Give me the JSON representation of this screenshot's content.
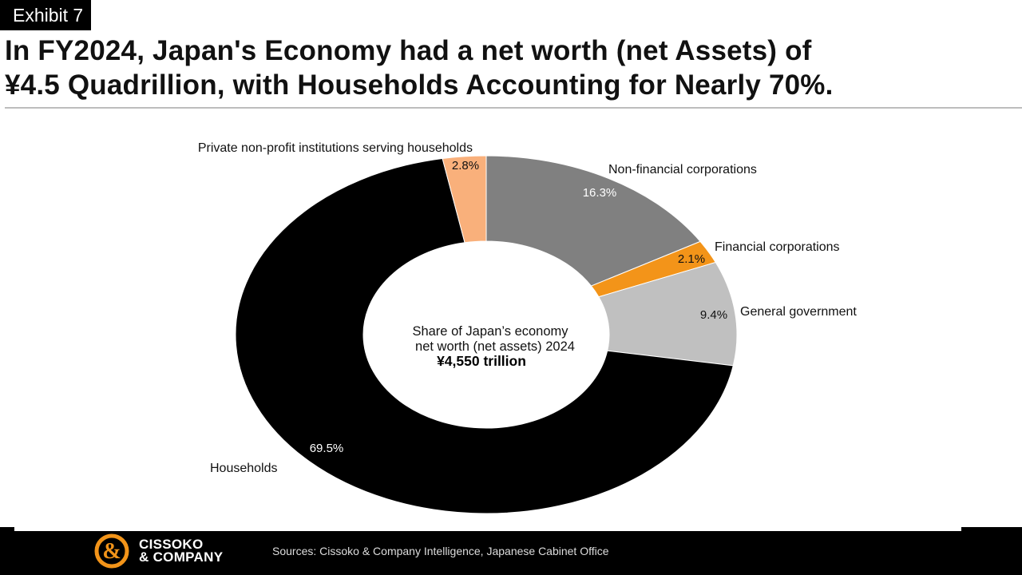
{
  "exhibit_label": "Exhibit 7",
  "title_line1": "In FY2024, Japan's Economy had a net worth (net Assets) of",
  "title_line2": "¥4.5 Quadrillion, with Households Accounting for Nearly 70%.",
  "chart_data": {
    "type": "pie",
    "donut": true,
    "center_label_line1": "Share of Japan’s economy",
    "center_label_line2": "net worth (net assets) 2024",
    "center_value": "¥4,550 trillion",
    "slices": [
      {
        "name": "Non-financial corporations",
        "value": 16.3,
        "label": "16.3%",
        "color": "#808080"
      },
      {
        "name": "Financial corporations",
        "value": 2.1,
        "label": "2.1%",
        "color": "#f39419"
      },
      {
        "name": "General government",
        "value": 9.4,
        "label": "9.4%",
        "color": "#c0c0c0"
      },
      {
        "name": "Households",
        "value": 69.5,
        "label": "69.5%",
        "color": "#000000"
      },
      {
        "name": "Private non-profit institutions serving households",
        "value": 2.8,
        "label": "2.8%",
        "color": "#f9b07b"
      }
    ]
  },
  "footer": {
    "logo_line1": "CISSOKO",
    "logo_line2": "& COMPANY",
    "logo_color": "#f39419",
    "sources": "Sources: Cissoko & Company Intelligence, Japanese Cabinet Office"
  }
}
